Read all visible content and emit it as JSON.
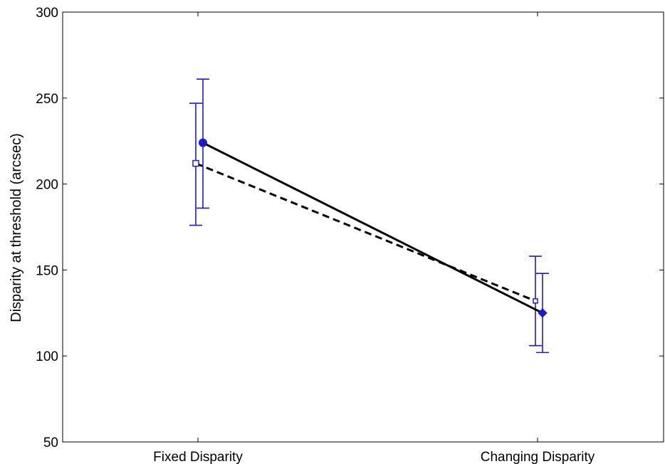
{
  "chart_data": {
    "type": "line",
    "title": "",
    "xlabel": "",
    "ylabel": "Disparity at threshold (arcsec)",
    "categories": [
      "Fixed Disparity",
      "Changing Disparity"
    ],
    "ylim": [
      50,
      300
    ],
    "yticks": [
      50,
      100,
      150,
      200,
      250,
      300
    ],
    "grid": false,
    "legend": "none",
    "series": [
      {
        "style": "solid",
        "marker": "filled-circle / filled-diamond",
        "values": [
          224,
          125
        ],
        "err_low": [
          186,
          102
        ],
        "err_high": [
          261,
          148
        ],
        "line_color": "#000000",
        "marker_color": "#1a1ad6",
        "error_color": "#1a1ad6"
      },
      {
        "style": "dashed",
        "marker": "open-square",
        "values": [
          212,
          132
        ],
        "err_low": [
          176,
          106
        ],
        "err_high": [
          247,
          158
        ],
        "line_color": "#000000",
        "marker_color": "#1a1ad6",
        "error_color": "#1a1ad6"
      }
    ]
  }
}
